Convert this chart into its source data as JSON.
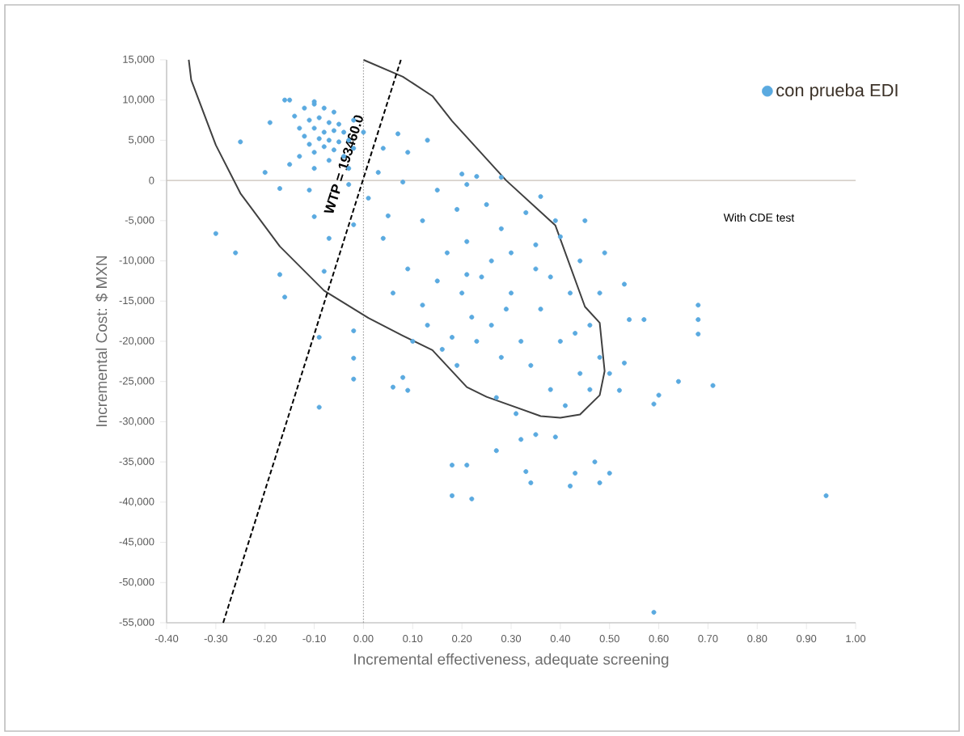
{
  "chart_data": {
    "type": "scatter",
    "xlabel": "Incremental effectiveness, adequate screening",
    "ylabel": "Incremental Cost: $ MXN",
    "xlim": [
      -0.4,
      1.0
    ],
    "ylim": [
      -55000,
      15000
    ],
    "xticks": [
      {
        "value": -0.4,
        "label": "-0.40"
      },
      {
        "value": -0.3,
        "label": "-0.30"
      },
      {
        "value": -0.2,
        "label": "-0.20"
      },
      {
        "value": -0.1,
        "label": "-0.10"
      },
      {
        "value": 0,
        "label": "0.00"
      },
      {
        "value": 0.1,
        "label": "0.10"
      },
      {
        "value": 0.2,
        "label": "0.20"
      },
      {
        "value": 0.3,
        "label": "0.30"
      },
      {
        "value": 0.4,
        "label": "0.40"
      },
      {
        "value": 0.5,
        "label": "0.50"
      },
      {
        "value": 0.6,
        "label": "0.60"
      },
      {
        "value": 0.7,
        "label": "0.70"
      },
      {
        "value": 0.8,
        "label": "0.80"
      },
      {
        "value": 0.9,
        "label": "0.90"
      },
      {
        "value": 1.0,
        "label": "1.00"
      }
    ],
    "yticks": [
      {
        "value": -55000,
        "label": "-55,000"
      },
      {
        "value": -50000,
        "label": "-50,000"
      },
      {
        "value": -45000,
        "label": "-45,000"
      },
      {
        "value": -40000,
        "label": "-40,000"
      },
      {
        "value": -35000,
        "label": "-35,000"
      },
      {
        "value": -30000,
        "label": "-30,000"
      },
      {
        "value": -25000,
        "label": "-25,000"
      },
      {
        "value": -20000,
        "label": "-20,000"
      },
      {
        "value": -15000,
        "label": "-15,000"
      },
      {
        "value": -10000,
        "label": "-10,000"
      },
      {
        "value": -5000,
        "label": "-5,000"
      },
      0,
      {
        "value": 5000,
        "label": "5,000"
      },
      {
        "value": 10000,
        "label": "10,000"
      },
      {
        "value": 15000,
        "label": "15,000"
      }
    ],
    "marker": "circle",
    "legend": "top right",
    "series": [
      {
        "name": "con prueba EDI",
        "color": "#5aaae0",
        "x": [
          -0.12,
          -0.1,
          -0.08,
          -0.06,
          -0.14,
          -0.11,
          -0.09,
          -0.07,
          -0.05,
          -0.13,
          -0.1,
          -0.08,
          -0.06,
          -0.04,
          -0.12,
          -0.09,
          -0.07,
          -0.05,
          -0.03,
          -0.11,
          -0.08,
          -0.06,
          -0.02,
          -0.1,
          -0.04,
          -0.13,
          -0.07,
          -0.15,
          -0.1,
          -0.03,
          -0.16,
          -0.02,
          0.0,
          -0.3,
          -0.26,
          -0.25,
          -0.19,
          -0.2,
          -0.17,
          -0.16,
          -0.15,
          -0.1,
          -0.08,
          -0.17,
          -0.09,
          -0.09,
          -0.02,
          -0.02,
          -0.02,
          0.06,
          0.08,
          0.09,
          0.18,
          0.18,
          0.22,
          0.94,
          0.59,
          0.68,
          0.71,
          0.64,
          0.6,
          0.59,
          0.53,
          0.52,
          0.5,
          0.48,
          0.47,
          0.43,
          0.42,
          0.34,
          0.33,
          0.32,
          0.35,
          0.39,
          0.27,
          0.21,
          0.68,
          0.68,
          0.49,
          0.53,
          0.57,
          0.54,
          0.39,
          0.28,
          0.2,
          0.21,
          0.07,
          0.13,
          0.04,
          0.09,
          0.03,
          0.08,
          0.15,
          0.01,
          0.05,
          0.12,
          0.19,
          0.23,
          0.21,
          0.04,
          0.09,
          0.15,
          0.21,
          0.06,
          0.12,
          0.22,
          0.18,
          -0.02,
          -0.03,
          -0.11,
          -0.1,
          -0.07,
          0.25,
          0.28,
          0.3,
          0.33,
          0.35,
          0.38,
          0.3,
          0.26,
          0.32,
          0.36,
          0.4,
          0.42,
          0.44,
          0.46,
          0.48,
          0.44,
          0.38,
          0.34,
          0.28,
          0.24,
          0.27,
          0.31,
          0.41,
          0.46,
          0.5,
          0.36,
          0.4,
          0.45,
          0.23,
          0.19,
          0.16,
          0.13,
          0.1,
          0.17,
          0.26,
          0.2,
          0.35,
          0.48,
          0.43,
          0.29
        ],
        "values": [
          9000,
          9500,
          9000,
          8500,
          8000,
          7500,
          7800,
          7200,
          7000,
          6500,
          6500,
          6000,
          6200,
          6000,
          5500,
          5200,
          5000,
          4800,
          5000,
          4500,
          4200,
          3800,
          4000,
          3500,
          3000,
          3000,
          2500,
          2000,
          1500,
          1500,
          10000,
          7500,
          6000,
          -6600,
          -9000,
          4800,
          7200,
          1000,
          -11700,
          -14500,
          10000,
          9800,
          -11300,
          -1000,
          -28200,
          -19500,
          -18700,
          -22100,
          -24700,
          -25700,
          -24500,
          -26100,
          -35400,
          -39200,
          -39600,
          -39200,
          -53700,
          -19100,
          -25500,
          -25000,
          -26700,
          -27800,
          -22700,
          -26100,
          -36400,
          -37600,
          -35000,
          -36400,
          -38000,
          -37600,
          -36200,
          -32200,
          -31600,
          -31900,
          -33600,
          -35400,
          -15500,
          -17300,
          -9000,
          -12900,
          -17300,
          -17300,
          -5000,
          400,
          800,
          -500,
          5800,
          5000,
          4000,
          3500,
          1000,
          -200,
          -1200,
          -2200,
          -4400,
          -5000,
          -3600,
          500,
          -7600,
          -7200,
          -11000,
          -12500,
          -11700,
          -14000,
          -15500,
          -17000,
          -19500,
          -5500,
          -500,
          -1200,
          -4500,
          -7200,
          -3000,
          -6000,
          -9000,
          -4000,
          -8000,
          -12000,
          -14000,
          -18000,
          -20000,
          -16000,
          -20000,
          -14000,
          -10000,
          -18000,
          -22000,
          -24000,
          -26000,
          -23000,
          -22000,
          -12000,
          -27000,
          -29000,
          -28000,
          -26000,
          -24000,
          -2000,
          -7000,
          -5000,
          -20000,
          -23000,
          -21000,
          -18000,
          -20000,
          -9000,
          -10000,
          -14000,
          -11000,
          -14000,
          -19000,
          -16000
        ]
      },
      {
        "type": "line",
        "color": "#404040",
        "marker": "none",
        "line_style": "solid",
        "x": [
          -0.355,
          -0.35,
          -0.3,
          -0.25,
          -0.17,
          -0.08,
          0.01,
          0.08,
          0.14,
          0.21,
          0.25,
          0.36,
          0.4,
          0.44,
          0.48,
          0.49,
          0.48,
          0.45,
          0.39,
          0.29,
          0.18,
          0.14,
          0.08,
          0.0
        ],
        "values": [
          15000,
          12500,
          4400,
          -1600,
          -8200,
          -13700,
          -17100,
          -19300,
          -21100,
          -25700,
          -26900,
          -29300,
          -29500,
          -29100,
          -26700,
          -23700,
          -17700,
          -15700,
          -5600,
          0,
          7400,
          10500,
          12900,
          15000
        ]
      },
      {
        "type": "line",
        "color": "#000000",
        "marker": "none",
        "line_style": "dashed",
        "x": [
          -0.285,
          0.076
        ],
        "values": [
          -55000,
          15000
        ]
      }
    ],
    "ref_lines": [
      {
        "axis": "x",
        "value": 0,
        "color": "#a0a0a0",
        "line_style": "dotted"
      },
      {
        "axis": "y",
        "value": 0,
        "color": "#c8c0b8",
        "line_style": "solid"
      }
    ],
    "annotations": [
      {
        "text": "WTP = 193460.0",
        "x": -0.04,
        "y": 2000
      },
      "With CDE test"
    ]
  }
}
